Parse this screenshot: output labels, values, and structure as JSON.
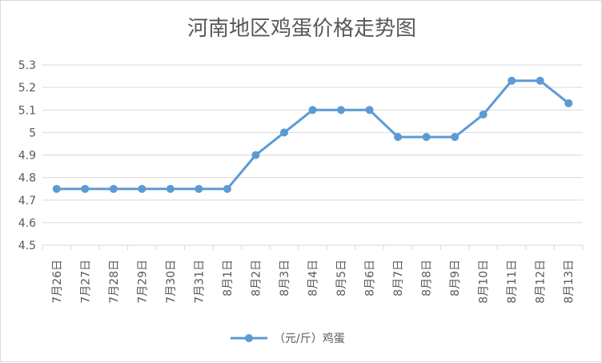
{
  "chart_data": {
    "type": "line",
    "title": "河南地区鸡蛋价格走势图",
    "xlabel": "",
    "ylabel": "",
    "ylim": [
      4.5,
      5.3
    ],
    "yticks": [
      "4.5",
      "4.6",
      "4.7",
      "4.8",
      "4.9",
      "5",
      "5.1",
      "5.2",
      "5.3"
    ],
    "grid": true,
    "legend_position": "bottom",
    "categories": [
      "7月26日",
      "7月27日",
      "7月28日",
      "7月29日",
      "7月30日",
      "7月31日",
      "8月1日",
      "8月2日",
      "8月3日",
      "8月4日",
      "8月5日",
      "8月6日",
      "8月7日",
      "8月8日",
      "8月9日",
      "8月10日",
      "8月11日",
      "8月12日",
      "8月13日"
    ],
    "series": [
      {
        "name": "（元/斤）鸡蛋",
        "color": "#5b9bd5",
        "values": [
          4.75,
          4.75,
          4.75,
          4.75,
          4.75,
          4.75,
          4.75,
          4.9,
          5.0,
          5.1,
          5.1,
          5.1,
          4.98,
          4.98,
          4.98,
          5.08,
          5.23,
          5.23,
          5.13
        ]
      }
    ]
  }
}
